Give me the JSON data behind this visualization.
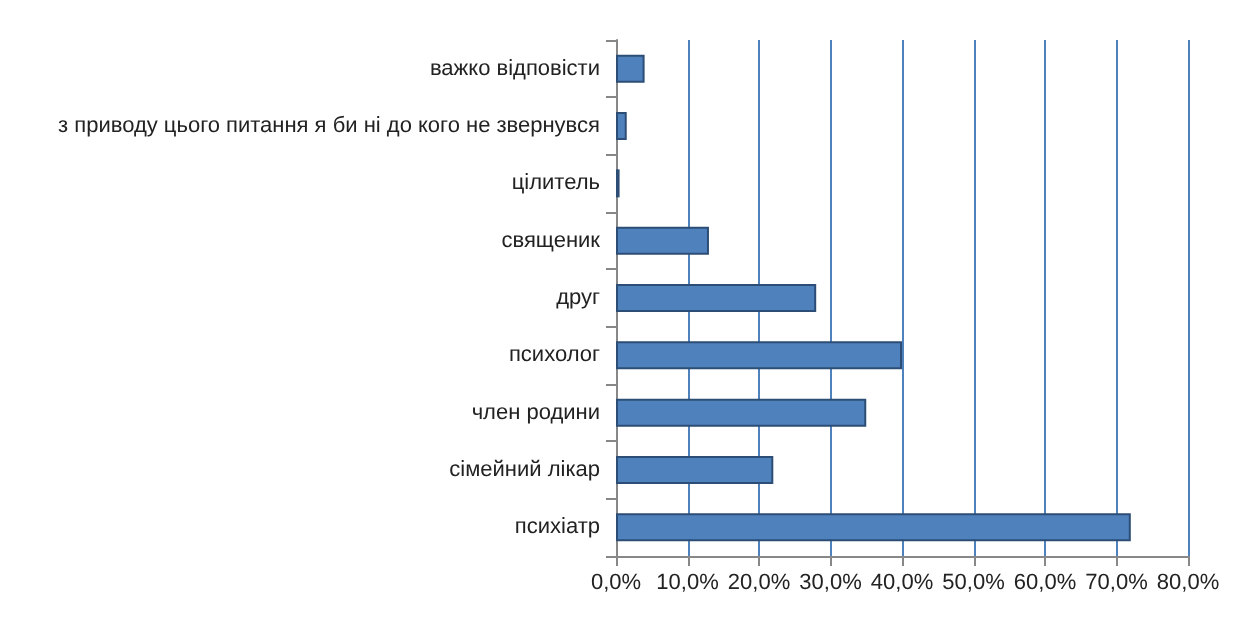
{
  "chart_data": {
    "type": "bar",
    "orientation": "horizontal",
    "categories": [
      "важко відповісти",
      "з приводу цього питання я би ні до кого не звернувся",
      "цілитель",
      "священик",
      "друг",
      "психолог",
      "член родини",
      "сімейний лікар",
      "психіатр"
    ],
    "values": [
      4,
      1.5,
      0.5,
      13,
      28,
      40,
      35,
      22,
      72
    ],
    "color": "#4f81bd",
    "xlim": [
      0,
      80
    ],
    "xticks": [
      {
        "value": 0,
        "label": "0,0%"
      },
      {
        "value": 10,
        "label": "10,0%"
      },
      {
        "value": 20,
        "label": "20,0%"
      },
      {
        "value": 30,
        "label": "30,0%"
      },
      {
        "value": 40,
        "label": "40,0%"
      },
      {
        "value": 50,
        "label": "50,0%"
      },
      {
        "value": 60,
        "label": "60,0%"
      },
      {
        "value": 70,
        "label": "70,0%"
      },
      {
        "value": 80,
        "label": "80,0%"
      }
    ],
    "grid": "x"
  }
}
